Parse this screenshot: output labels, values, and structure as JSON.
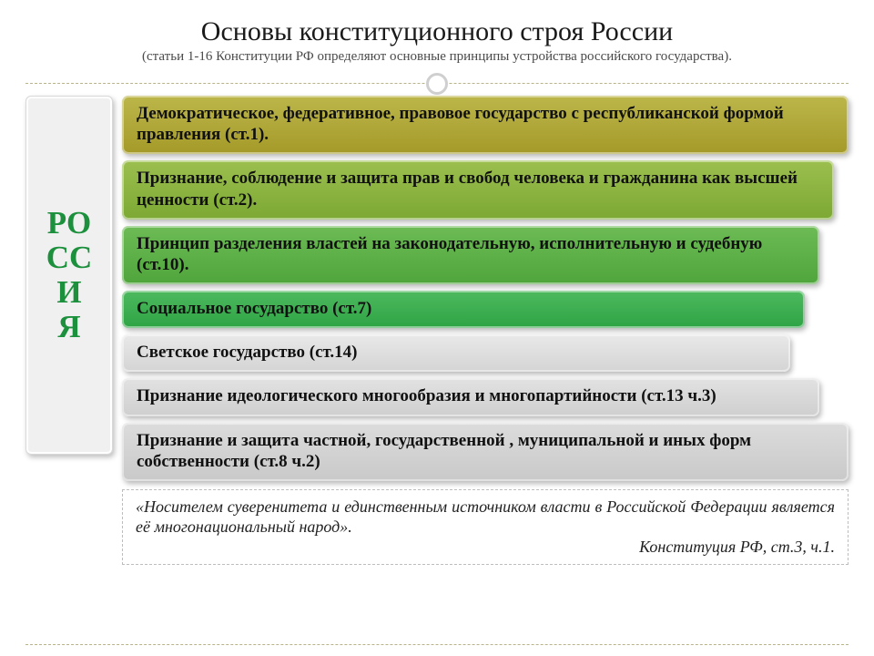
{
  "header": {
    "title": "Основы конституционного строя России",
    "subtitle": "(статьи 1-16 Конституции РФ определяют основные принципы устройства российского государства).",
    "title_fontsize": 30,
    "subtitle_fontsize": 15,
    "title_color": "#1a1a1a"
  },
  "side": {
    "label": "РО\nСС\nИ\nЯ",
    "color": "#1c903c",
    "fontsize": 35,
    "box_bg": "#f0f0f0"
  },
  "bars": [
    {
      "text": "Демократическое, федеративное, правовое государство с республиканской формой правления (ст.1).",
      "bg_top": "#bcb64a",
      "bg_bottom": "#a49a29",
      "width_pct": 100
    },
    {
      "text": "Признание, соблюдение и защита прав и свобод человека и гражданина как высшей ценности (ст.2).",
      "bg_top": "#9cbf4f",
      "bg_bottom": "#7ca833",
      "width_pct": 98
    },
    {
      "text": "Принцип разделения властей на законодательную, исполнительную и судебную (ст.10).",
      "bg_top": "#6dbb55",
      "bg_bottom": "#4fa53b",
      "width_pct": 96
    },
    {
      "text": "Социальное государство (ст.7)",
      "bg_top": "#4db95e",
      "bg_bottom": "#2ea445",
      "width_pct": 94
    },
    {
      "text": "Светское государство (ст.14)",
      "bg_top": "#e9e9e9",
      "bg_bottom": "#d4d4d4",
      "width_pct": 92
    },
    {
      "text": "Признание идеологического многообразия и многопартийности (ст.13 ч.3)",
      "bg_top": "#e2e2e2",
      "bg_bottom": "#cfcfcf",
      "width_pct": 96
    },
    {
      "text": "Признание и защита частной, государственной , муниципальной и иных форм собственности (ст.8 ч.2)",
      "bg_top": "#dcdcdc",
      "bg_bottom": "#c9c9c9",
      "width_pct": 100
    }
  ],
  "bar_style": {
    "fontsize": 19,
    "font_weight": "bold",
    "border_radius": 7
  },
  "quote": {
    "text": "«Носителем суверенитета и единственным источником власти в Российской Федерации является её многонациональный народ».",
    "source": "Конституция РФ, ст.3, ч.1.",
    "fontsize": 18
  },
  "palette": {
    "divider_dash": "#b9b38a",
    "ring": "#cfcfcf",
    "background": "#ffffff"
  }
}
